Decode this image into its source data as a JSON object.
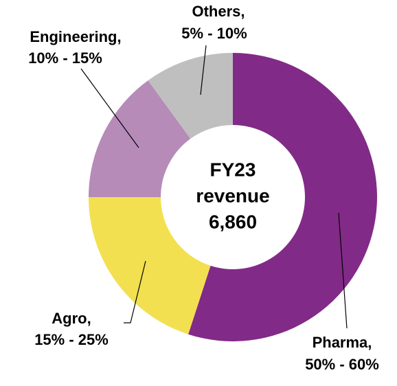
{
  "chart_data": {
    "type": "donut",
    "categories": [
      "Pharma,",
      "Agro,",
      "Engineering,",
      "Others,"
    ],
    "values": [
      55,
      20,
      15,
      10
    ],
    "value_labels": [
      "50% - 60%",
      "15% - 25%",
      "10% - 15%",
      "5% - 10%"
    ],
    "colors": [
      "#822A87",
      "#F2E050",
      "#B68BB8",
      "#BFBFBF"
    ],
    "center_text": [
      "FY23",
      "revenue",
      "6,860"
    ]
  }
}
